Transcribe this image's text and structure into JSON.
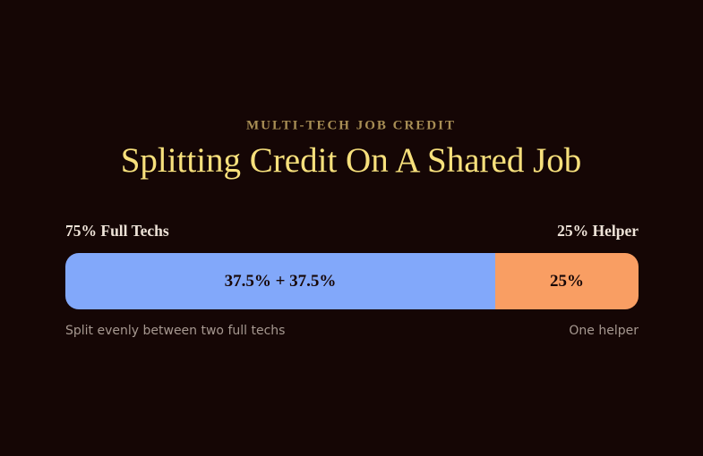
{
  "chart_data": {
    "type": "stacked-bar",
    "eyebrow": "MULTI-TECH JOB CREDIT",
    "title": "Splitting Credit On A Shared Job",
    "series": [
      {
        "label": "75% Full Techs",
        "color": "#82a8fa",
        "values": [
          75
        ],
        "value_labels": [
          "37.5% + 37.5%"
        ],
        "note": "Split evenly between two full techs"
      },
      {
        "label": "25% Helper",
        "color": "#f99e63",
        "values": [
          25
        ],
        "value_labels": [
          "25%"
        ],
        "note": "One helper"
      }
    ]
  }
}
